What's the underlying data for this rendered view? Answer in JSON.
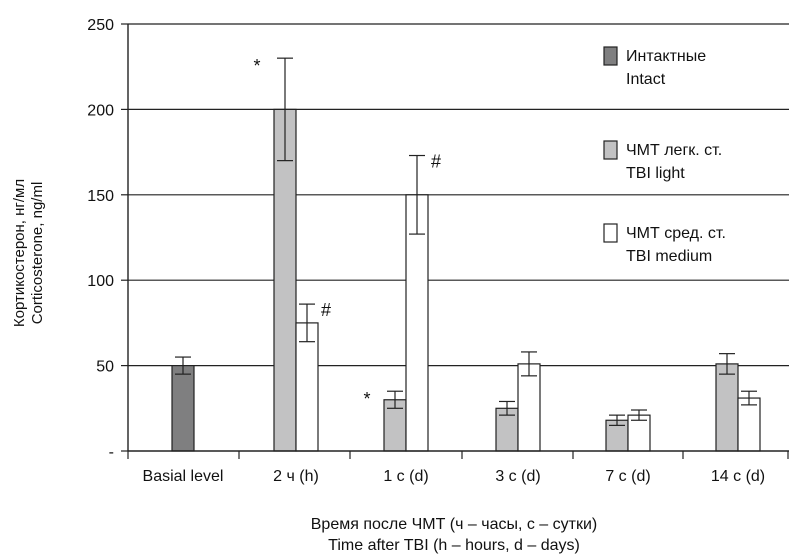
{
  "chart_data": {
    "type": "bar",
    "xlabel": [
      "Время после ЧМТ (ч – часы, с – сутки)",
      "Time after TBI (h – hours, d – days)"
    ],
    "ylabel": [
      "Кортикостерон, нг/мл",
      "Corticosterone, ng/ml"
    ],
    "ylim": [
      0,
      250
    ],
    "yticks": [
      {
        "value": 0,
        "label": "-"
      },
      {
        "value": 50,
        "label": "50"
      },
      {
        "value": 100,
        "label": "100"
      },
      {
        "value": 150,
        "label": "150"
      },
      {
        "value": 200,
        "label": "200"
      },
      {
        "value": 250,
        "label": "250"
      }
    ],
    "grid": true,
    "legend_position": "right",
    "categories": [
      "Basial level",
      "2 ч (h)",
      "1 с (d)",
      "3 с (d)",
      "7 с (d)",
      "14 с (d)"
    ],
    "series": [
      {
        "name": [
          "Интактные",
          "Intact"
        ],
        "color": "#7f7f80",
        "values": [
          50,
          null,
          null,
          null,
          null,
          null
        ],
        "errors": [
          5,
          null,
          null,
          null,
          null,
          null
        ]
      },
      {
        "name": [
          "ЧМТ легк. ст.",
          "TBI light"
        ],
        "color": "#c2c2c3",
        "values": [
          null,
          200,
          30,
          25,
          18,
          51
        ],
        "errors": [
          null,
          30,
          5,
          4,
          3,
          6
        ]
      },
      {
        "name": [
          "ЧМТ сред. ст.",
          "TBI medium"
        ],
        "color": "#ffffff",
        "values": [
          null,
          75,
          150,
          51,
          21,
          31
        ],
        "errors": [
          null,
          11,
          23,
          7,
          3,
          4
        ]
      }
    ],
    "annotations": [
      {
        "text": "*",
        "category": "2 ч (h)",
        "series": 1
      },
      {
        "text": "#",
        "category": "2 ч (h)",
        "series": 2
      },
      {
        "text": "*",
        "category": "1 с (d)",
        "series": 1
      },
      {
        "text": "#",
        "category": "1 с (d)",
        "series": 2
      }
    ]
  }
}
